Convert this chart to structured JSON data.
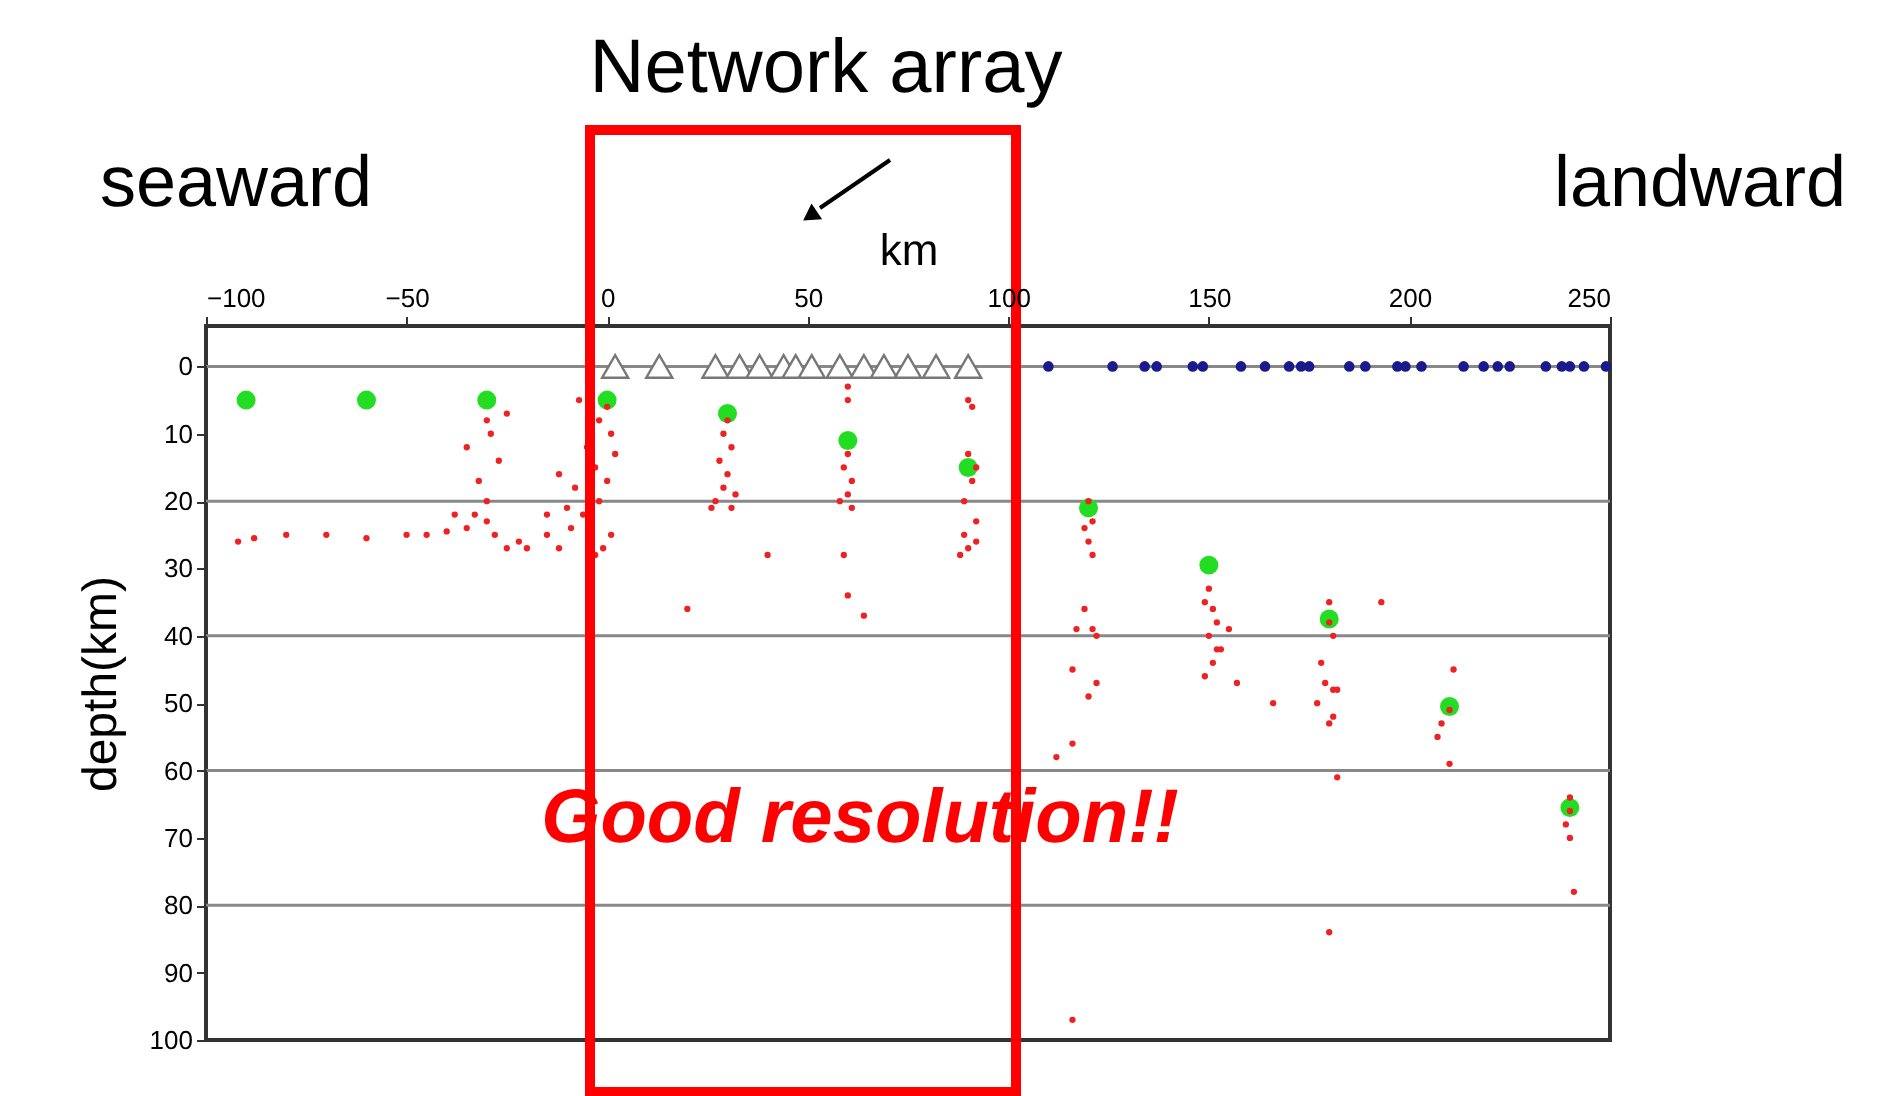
{
  "chart_data": {
    "type": "scatter",
    "title": "Network array",
    "xlabel": "km",
    "ylabel": "depth(km)",
    "annotations": [
      "seaward",
      "landward",
      "Good resolution!!"
    ],
    "xlim": [
      -100,
      250
    ],
    "xticks": [
      -100,
      -50,
      0,
      50,
      100,
      150,
      200,
      250
    ],
    "ylim": [
      100,
      -6
    ],
    "yticks": [
      0,
      10,
      20,
      30,
      40,
      50,
      60,
      70,
      80,
      90,
      100
    ],
    "ref_lines": [
      {
        "axis": "y",
        "value": 0,
        "color": "#888888"
      },
      {
        "axis": "y",
        "value": 20,
        "color": "#888888"
      },
      {
        "axis": "y",
        "value": 40,
        "color": "#888888"
      },
      {
        "axis": "y",
        "value": 60,
        "color": "#888888"
      },
      {
        "axis": "y",
        "value": 80,
        "color": "#888888"
      }
    ],
    "grid": false,
    "series": [
      {
        "color": "#22dd22",
        "marker": "circle",
        "x": [
          -90,
          -60,
          -30,
          0,
          30,
          60,
          90,
          120,
          150,
          180,
          210,
          240
        ],
        "values": [
          5,
          5,
          5,
          5,
          7,
          11,
          15,
          21,
          29.5,
          37.5,
          50.5,
          65.5
        ]
      },
      {
        "color": "#ee2222",
        "marker": "circle",
        "x": [
          -92,
          -88,
          -80,
          -70,
          -60,
          -50,
          -45,
          -40,
          -35,
          -33,
          -30,
          -28,
          -25,
          -30,
          -32,
          -27,
          -29,
          -30,
          -25,
          -35,
          -22,
          -20,
          -38,
          -15,
          -12,
          0,
          -2,
          1,
          -5,
          -3,
          0,
          -8,
          -2,
          -6,
          -9,
          1,
          -1,
          -10,
          2,
          -3,
          -12,
          -15,
          -7,
          30,
          29,
          31,
          28,
          30,
          29,
          27,
          31,
          26,
          32,
          20,
          40,
          60,
          60,
          60,
          59,
          61,
          60,
          61,
          58,
          59,
          64,
          60,
          90,
          91,
          92,
          89,
          90,
          92,
          88,
          90,
          91,
          89,
          92,
          120,
          121,
          119,
          120,
          121,
          119,
          117,
          121,
          122,
          116,
          122,
          120,
          116,
          112,
          116,
          150,
          149,
          151,
          152,
          150,
          152,
          151,
          149,
          153,
          155,
          157,
          166,
          180,
          180,
          181,
          178,
          179,
          181,
          177,
          182,
          181,
          180,
          193,
          182,
          180,
          211,
          210,
          208,
          207,
          210,
          240,
          240,
          239,
          240,
          241
        ],
        "values": [
          26,
          25.5,
          25,
          25,
          25.5,
          25,
          25,
          24.5,
          24,
          22,
          23,
          25,
          27,
          20,
          17,
          14,
          10,
          8,
          7,
          12,
          26,
          27,
          22,
          25,
          27,
          6,
          8,
          10,
          12,
          15,
          17,
          18,
          20,
          22,
          24,
          25,
          27,
          21,
          13,
          28,
          16,
          22,
          5,
          8,
          10,
          12,
          14,
          16,
          18,
          20,
          21,
          21,
          19,
          36,
          28,
          3,
          5,
          13,
          15,
          17,
          19,
          21,
          20,
          28,
          37,
          34,
          13,
          17,
          23,
          25,
          27,
          26,
          28,
          5,
          6,
          20,
          15,
          20,
          23,
          24,
          26,
          28,
          36,
          39,
          39,
          40,
          45,
          47,
          49,
          56,
          58,
          97,
          33,
          35,
          36,
          38,
          40,
          42,
          44,
          46,
          42,
          39,
          47,
          50,
          35,
          38,
          40,
          44,
          47,
          48,
          50,
          48,
          52,
          53,
          35,
          61,
          84,
          45,
          51,
          53,
          55,
          59,
          64,
          66,
          68,
          70,
          78
        ]
      },
      {
        "color": "#1a1a8c",
        "marker": "circle",
        "x": [
          110,
          126,
          134,
          137,
          146,
          148.5,
          158,
          164,
          170,
          173,
          175,
          185,
          189,
          197,
          199,
          203,
          213.5,
          218.5,
          222,
          225,
          234,
          238,
          240,
          243.5,
          249
        ],
        "values": [
          0,
          0,
          0,
          0,
          0,
          0,
          0,
          0,
          0,
          0,
          0,
          0,
          0,
          0,
          0,
          0,
          0,
          0,
          0,
          0,
          0,
          0,
          0,
          0,
          0
        ]
      },
      {
        "color": "#ffffff",
        "marker": "triangle",
        "x": [
          2,
          13,
          27,
          33,
          38,
          44,
          47,
          51,
          58,
          64,
          69,
          75,
          82,
          90
        ],
        "values": [
          0,
          0,
          0,
          0,
          0,
          0,
          0,
          0,
          0,
          0,
          0,
          0,
          0,
          0
        ]
      }
    ]
  }
}
